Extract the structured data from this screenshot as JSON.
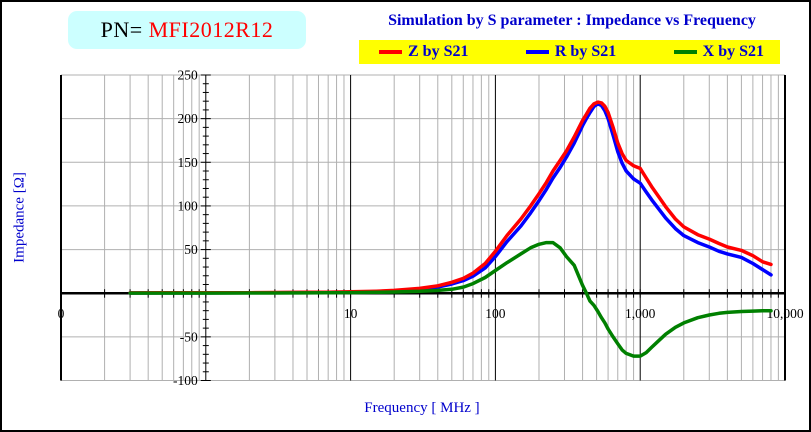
{
  "window": {
    "border_color": "#000000",
    "background": "#FFFFFF"
  },
  "header": {
    "pn_label": "PN=",
    "pn_value": "MFI2012R12",
    "pn_box_bg": "#CCFFFF",
    "pn_label_color": "#000000",
    "pn_value_color": "#FF0000",
    "title": "Simulation by S parameter : Impedance vs Frequency",
    "title_color": "#0000CC"
  },
  "legend": {
    "bg": "#FFFF00",
    "text_color": "#0000CC",
    "items": [
      {
        "label": "Z by S21",
        "color": "#FF0000"
      },
      {
        "label": "R by S21",
        "color": "#0000FF"
      },
      {
        "label": "X by S21",
        "color": "#008000"
      }
    ]
  },
  "axes": {
    "x_title": "Frequency [ MHz ]",
    "y_title": "Impedance [Ω]",
    "axis_title_color": "#0000CC",
    "tick_label_color": "#000000"
  },
  "chart_data": {
    "type": "line",
    "title": "Simulation by S parameter : Impedance vs Frequency",
    "xlabel": "Frequency [ MHz ]",
    "ylabel": "Impedance [Ω]",
    "x_scale": "log",
    "x_range_mhz": [
      0.1,
      10000
    ],
    "ylim": [
      -100,
      250
    ],
    "y_gridline_step_ohm": 50,
    "x_minor_gridlines": "at 2,3,4,5,6,7,8,9 of each decade",
    "y_axis_line_at_mhz": 1,
    "x_axis_at_ohm": 0,
    "grid": true,
    "legend_position": "top",
    "grid_color": "#B0B0B0",
    "axis_color": "#000000",
    "x_tick_labels": [
      {
        "label": "0",
        "mhz": 0.1
      },
      {
        "label": "10",
        "mhz": 10
      },
      {
        "label": "100",
        "mhz": 100
      },
      {
        "label": "1,000",
        "mhz": 1000
      },
      {
        "label": "10,000",
        "mhz": 10000
      }
    ],
    "y_tick_labels": [
      {
        "label": "250",
        "value": 250
      },
      {
        "label": "200",
        "value": 200
      },
      {
        "label": "150",
        "value": 150
      },
      {
        "label": "100",
        "value": 100
      },
      {
        "label": "50",
        "value": 50
      },
      {
        "label": "-50",
        "value": -50
      },
      {
        "label": "-100",
        "value": -100
      }
    ],
    "series": [
      {
        "name": "R by S21",
        "color": "#0000FF",
        "points": [
          [
            0.3,
            0.3
          ],
          [
            0.5,
            0.35
          ],
          [
            1,
            0.4
          ],
          [
            2,
            0.5
          ],
          [
            3,
            0.6
          ],
          [
            5,
            0.8
          ],
          [
            7,
            1.0
          ],
          [
            10,
            1.3
          ],
          [
            15,
            1.9
          ],
          [
            20,
            2.6
          ],
          [
            30,
            4.5
          ],
          [
            40,
            7
          ],
          [
            50,
            10.5
          ],
          [
            60,
            14.5
          ],
          [
            70,
            19.5
          ],
          [
            85,
            29
          ],
          [
            100,
            42
          ],
          [
            120,
            59
          ],
          [
            150,
            77
          ],
          [
            175,
            92
          ],
          [
            200,
            106
          ],
          [
            225,
            119
          ],
          [
            250,
            132
          ],
          [
            280,
            144
          ],
          [
            310,
            156
          ],
          [
            350,
            172
          ],
          [
            400,
            192
          ],
          [
            425,
            200
          ],
          [
            450,
            207
          ],
          [
            480,
            214
          ],
          [
            510,
            217
          ],
          [
            540,
            215
          ],
          [
            570,
            209
          ],
          [
            600,
            200
          ],
          [
            650,
            181
          ],
          [
            700,
            162
          ],
          [
            750,
            149
          ],
          [
            800,
            140
          ],
          [
            900,
            131
          ],
          [
            1000,
            126
          ],
          [
            1100,
            116
          ],
          [
            1200,
            107
          ],
          [
            1350,
            96
          ],
          [
            1500,
            86
          ],
          [
            1750,
            74
          ],
          [
            2000,
            66
          ],
          [
            2500,
            58
          ],
          [
            3000,
            53
          ],
          [
            3500,
            48
          ],
          [
            4000,
            45
          ],
          [
            5000,
            41
          ],
          [
            6000,
            34
          ],
          [
            7000,
            27
          ],
          [
            8000,
            21
          ]
        ]
      },
      {
        "name": "Z by S21",
        "color": "#FF0000",
        "points": [
          [
            0.3,
            0.4
          ],
          [
            0.5,
            0.45
          ],
          [
            1,
            0.5
          ],
          [
            2,
            0.6
          ],
          [
            3,
            0.8
          ],
          [
            5,
            1.0
          ],
          [
            7,
            1.2
          ],
          [
            10,
            1.6
          ],
          [
            15,
            2.3
          ],
          [
            20,
            3.2
          ],
          [
            30,
            5.5
          ],
          [
            40,
            8.5
          ],
          [
            50,
            12.5
          ],
          [
            60,
            17
          ],
          [
            70,
            23
          ],
          [
            85,
            34
          ],
          [
            100,
            48
          ],
          [
            120,
            66
          ],
          [
            150,
            85
          ],
          [
            175,
            100
          ],
          [
            200,
            114
          ],
          [
            225,
            127
          ],
          [
            250,
            140
          ],
          [
            280,
            152
          ],
          [
            310,
            163
          ],
          [
            350,
            179
          ],
          [
            400,
            198
          ],
          [
            425,
            205
          ],
          [
            450,
            212
          ],
          [
            480,
            217
          ],
          [
            510,
            219
          ],
          [
            540,
            218
          ],
          [
            570,
            214
          ],
          [
            600,
            207
          ],
          [
            650,
            190
          ],
          [
            700,
            172
          ],
          [
            750,
            160
          ],
          [
            800,
            152
          ],
          [
            900,
            146
          ],
          [
            1000,
            143
          ],
          [
            1100,
            132
          ],
          [
            1200,
            122
          ],
          [
            1350,
            110
          ],
          [
            1500,
            99
          ],
          [
            1750,
            85
          ],
          [
            2000,
            76
          ],
          [
            2500,
            67
          ],
          [
            3000,
            62
          ],
          [
            3500,
            57
          ],
          [
            4000,
            53
          ],
          [
            5000,
            49
          ],
          [
            6000,
            43
          ],
          [
            7000,
            36
          ],
          [
            8000,
            33
          ]
        ]
      },
      {
        "name": "X by S21",
        "color": "#008000",
        "points": [
          [
            0.3,
            0.1
          ],
          [
            0.5,
            0.12
          ],
          [
            1,
            0.15
          ],
          [
            2,
            0.2
          ],
          [
            3,
            0.3
          ],
          [
            5,
            0.4
          ],
          [
            7,
            0.5
          ],
          [
            10,
            0.7
          ],
          [
            15,
            1.0
          ],
          [
            20,
            1.4
          ],
          [
            30,
            2.2
          ],
          [
            40,
            3.2
          ],
          [
            50,
            4.5
          ],
          [
            60,
            7
          ],
          [
            70,
            11
          ],
          [
            85,
            18
          ],
          [
            100,
            26
          ],
          [
            120,
            35
          ],
          [
            150,
            45
          ],
          [
            175,
            52
          ],
          [
            200,
            56
          ],
          [
            225,
            58
          ],
          [
            250,
            58
          ],
          [
            280,
            52
          ],
          [
            310,
            42
          ],
          [
            350,
            32
          ],
          [
            400,
            9
          ],
          [
            425,
            0
          ],
          [
            450,
            -9
          ],
          [
            480,
            -14
          ],
          [
            510,
            -21
          ],
          [
            540,
            -28
          ],
          [
            570,
            -34
          ],
          [
            600,
            -41
          ],
          [
            650,
            -50
          ],
          [
            700,
            -58
          ],
          [
            750,
            -65
          ],
          [
            800,
            -69
          ],
          [
            900,
            -72
          ],
          [
            1000,
            -72
          ],
          [
            1100,
            -68
          ],
          [
            1200,
            -62
          ],
          [
            1350,
            -54
          ],
          [
            1500,
            -47
          ],
          [
            1750,
            -39
          ],
          [
            2000,
            -34
          ],
          [
            2500,
            -28
          ],
          [
            3000,
            -25
          ],
          [
            3500,
            -23
          ],
          [
            4000,
            -22
          ],
          [
            5000,
            -21
          ],
          [
            6000,
            -20.5
          ],
          [
            7000,
            -20
          ],
          [
            8000,
            -20
          ]
        ]
      }
    ]
  }
}
